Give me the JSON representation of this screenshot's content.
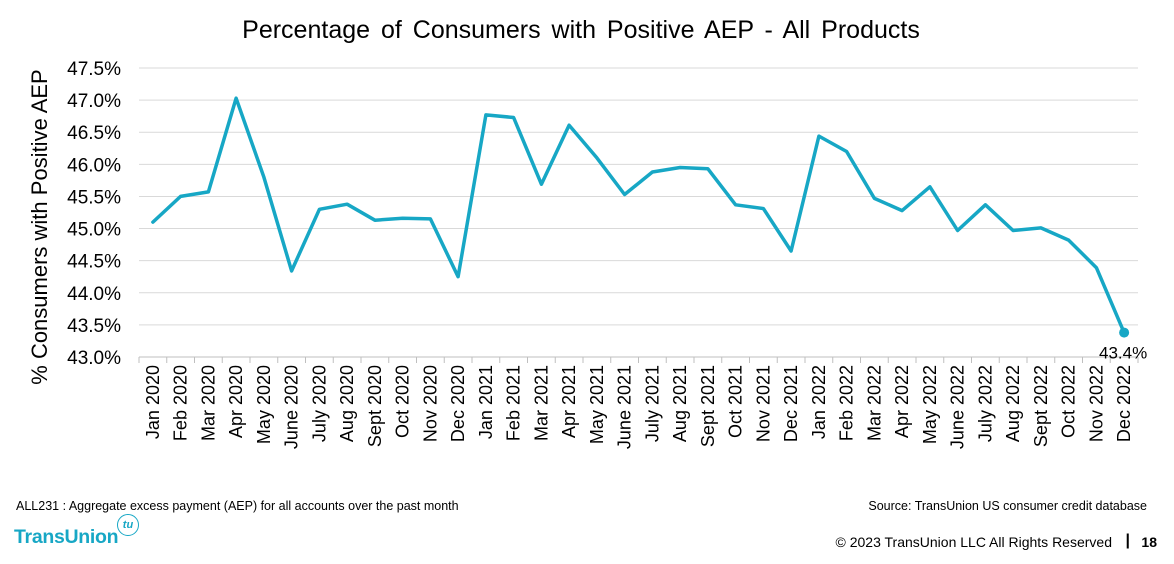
{
  "chart_data": {
    "type": "line",
    "title": "Percentage of Consumers with Positive AEP - All Products",
    "xlabel": "",
    "ylabel": "% Consumers with Positive AEP",
    "ylim": [
      43.0,
      47.5
    ],
    "ytick_values": [
      43.0,
      43.5,
      44.0,
      44.5,
      45.0,
      45.5,
      46.0,
      46.5,
      47.0,
      47.5
    ],
    "ytick_labels": [
      "43.0%",
      "43.5%",
      "44.0%",
      "44.5%",
      "45.0%",
      "45.5%",
      "46.0%",
      "46.5%",
      "47.0%",
      "47.5%"
    ],
    "grid": true,
    "legend": "none",
    "line_color": "#17a7c5",
    "categories": [
      "Jan 2020",
      "Feb 2020",
      "Mar 2020",
      "Apr 2020",
      "May 2020",
      "June 2020",
      "July 2020",
      "Aug 2020",
      "Sept 2020",
      "Oct 2020",
      "Nov 2020",
      "Dec 2020",
      "Jan 2021",
      "Feb 2021",
      "Mar 2021",
      "Apr 2021",
      "May 2021",
      "June 2021",
      "July 2021",
      "Aug 2021",
      "Sept 2021",
      "Oct 2021",
      "Nov 2021",
      "Dec 2021",
      "Jan 2022",
      "Feb 2022",
      "Mar 2022",
      "Apr 2022",
      "May 2022",
      "June 2022",
      "July 2022",
      "Aug 2022",
      "Sept 2022",
      "Oct 2022",
      "Nov 2022",
      "Dec 2022"
    ],
    "series": [
      {
        "values": [
          45.1,
          45.5,
          45.57,
          47.03,
          45.8,
          44.34,
          45.3,
          45.38,
          45.13,
          45.16,
          45.15,
          44.25,
          46.77,
          46.73,
          45.69,
          46.61,
          46.1,
          45.53,
          45.88,
          45.95,
          45.93,
          45.37,
          45.31,
          44.65,
          46.44,
          46.2,
          45.47,
          45.28,
          45.65,
          44.97,
          45.37,
          44.97,
          45.01,
          44.82,
          44.39,
          43.38
        ]
      }
    ],
    "annotations": [
      {
        "category": "Dec 2022",
        "value": 43.38,
        "text": "43.4%"
      }
    ]
  },
  "footer": {
    "note": "ALL231 : Aggregate excess payment (AEP)  for all accounts over the past month",
    "source": "Source: TransUnion US consumer credit database",
    "brand": "TransUnion",
    "brand_badge": "tu",
    "copyright": "© 2023 TransUnion LLC All Rights Reserved",
    "separator": "|",
    "page_number": "18"
  }
}
